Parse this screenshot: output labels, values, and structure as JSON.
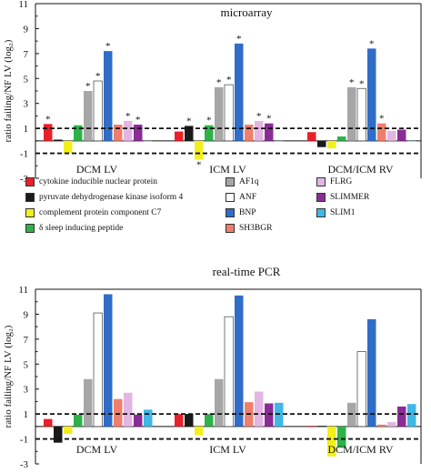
{
  "chart_data": [
    {
      "type": "bar",
      "title": "microarray",
      "ylabel": "ratio failing/NF LV (log₂)",
      "ylim": [
        -3,
        11
      ],
      "yticks": [
        -3,
        -1,
        1,
        3,
        5,
        7,
        9,
        11
      ],
      "dashed_lines": [
        1,
        -1
      ],
      "groups": [
        "DCM LV",
        "ICM LV",
        "DCM/ICM RV"
      ],
      "series": [
        {
          "name": "cytokine inducible nuclear protein",
          "color": "#e8202a",
          "values": [
            1.35,
            0.75,
            0.7
          ],
          "significant": [
            true,
            false,
            false
          ]
        },
        {
          "name": "pyruvate dehydrogenase kinase isoform 4",
          "color": "#1a1a1a",
          "values": [
            0.1,
            1.2,
            -0.5
          ],
          "significant": [
            false,
            true,
            false
          ]
        },
        {
          "name": "complement protein component C7",
          "color": "#f2ef1a",
          "values": [
            -1.0,
            -1.5,
            -0.6
          ],
          "significant": [
            false,
            true,
            false
          ]
        },
        {
          "name": "δ sleep inducing peptide",
          "color": "#2fb14a",
          "values": [
            1.25,
            1.25,
            0.35
          ],
          "significant": [
            false,
            true,
            false
          ]
        },
        {
          "name": "AF1q",
          "color": "#a6a6a6",
          "values": [
            4.0,
            4.3,
            4.3
          ],
          "significant": [
            true,
            true,
            true
          ]
        },
        {
          "name": "ANF",
          "color": "#ffffff",
          "values": [
            4.8,
            4.5,
            4.2
          ],
          "significant": [
            true,
            true,
            true
          ]
        },
        {
          "name": "BNP",
          "color": "#2f6dc9",
          "values": [
            7.2,
            7.8,
            7.4
          ],
          "significant": [
            true,
            true,
            true
          ]
        },
        {
          "name": "SH3BGR",
          "color": "#ee7f6d",
          "values": [
            1.3,
            1.3,
            1.4
          ],
          "significant": [
            false,
            false,
            true
          ]
        },
        {
          "name": "FLRG",
          "color": "#e2b5e2",
          "values": [
            1.6,
            1.6,
            0.8
          ],
          "significant": [
            true,
            true,
            false
          ]
        },
        {
          "name": "SLIMMER",
          "color": "#8a2c96",
          "values": [
            1.3,
            1.4,
            0.9
          ],
          "significant": [
            true,
            true,
            false
          ]
        },
        {
          "name": "SLIM1",
          "color": "#3fb8e6",
          "values": [
            0,
            0,
            0
          ],
          "significant": [
            false,
            false,
            false
          ]
        }
      ]
    },
    {
      "type": "bar",
      "title": "real-time PCR",
      "ylabel": "ratio failing/NF LV (log₂)",
      "ylim": [
        -3,
        11
      ],
      "yticks": [
        -3,
        -1,
        1,
        3,
        5,
        7,
        9,
        11
      ],
      "dashed_lines": [
        1,
        -1
      ],
      "groups": [
        "DCM LV",
        "ICM LV",
        "DCM/ICM RV"
      ],
      "series": [
        {
          "name": "cytokine inducible nuclear protein",
          "color": "#e8202a",
          "values": [
            0.6,
            1.0,
            0.05
          ]
        },
        {
          "name": "pyruvate dehydrogenase kinase isoform 4",
          "color": "#1a1a1a",
          "values": [
            -1.3,
            1.0,
            0.05
          ]
        },
        {
          "name": "complement protein component C7",
          "color": "#f2ef1a",
          "values": [
            -0.6,
            -0.7,
            -2.4
          ]
        },
        {
          "name": "δ sleep inducing peptide",
          "color": "#2fb14a",
          "values": [
            0.95,
            1.0,
            -1.7
          ]
        },
        {
          "name": "AF1q",
          "color": "#a6a6a6",
          "values": [
            3.8,
            3.8,
            1.9
          ]
        },
        {
          "name": "ANF",
          "color": "#ffffff",
          "values": [
            9.1,
            8.8,
            6.0
          ]
        },
        {
          "name": "BNP",
          "color": "#2f6dc9",
          "values": [
            10.6,
            10.5,
            8.6
          ]
        },
        {
          "name": "SH3BGR",
          "color": "#ee7f6d",
          "values": [
            2.2,
            1.95,
            0.15
          ]
        },
        {
          "name": "FLRG",
          "color": "#e2b5e2",
          "values": [
            2.7,
            2.8,
            0.35
          ]
        },
        {
          "name": "SLIMMER",
          "color": "#8a2c96",
          "values": [
            0.95,
            1.85,
            1.6
          ]
        },
        {
          "name": "SLIM1",
          "color": "#3fb8e6",
          "values": [
            1.35,
            1.9,
            1.8
          ]
        }
      ]
    }
  ]
}
